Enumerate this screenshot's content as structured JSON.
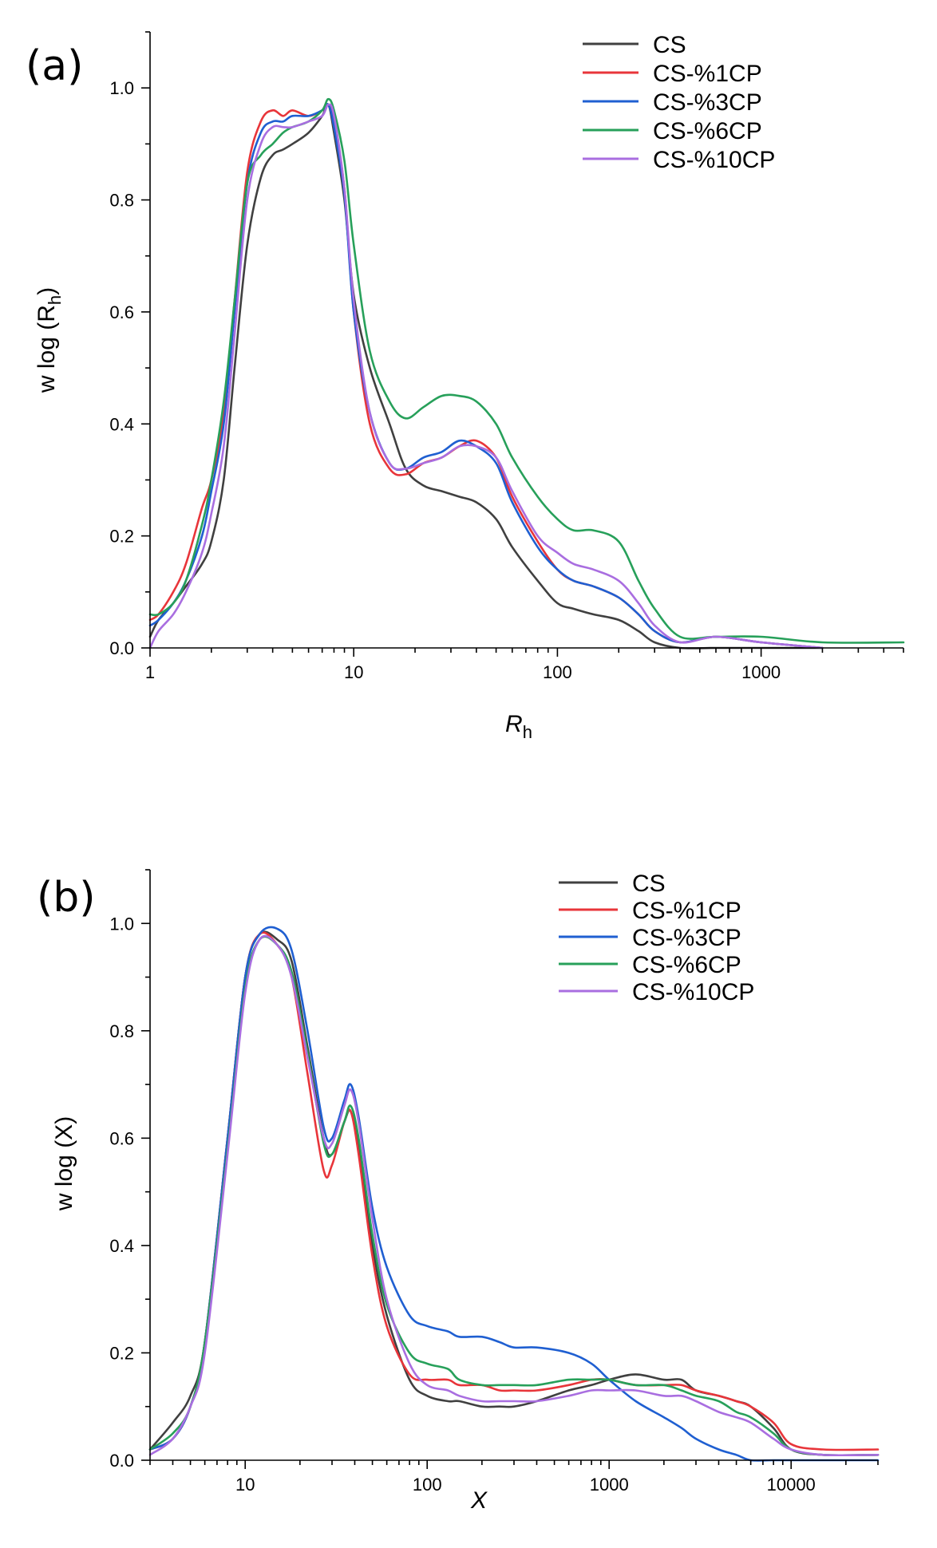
{
  "chart_data": [
    {
      "type": "line",
      "panel_label": "(a)",
      "xlabel": "R",
      "xlabel_sub": "h",
      "ylabel": "w log (R",
      "ylabel_sub": "h",
      "ylabel_close": ")",
      "x_scale": "log",
      "xlim": [
        1,
        5000
      ],
      "ylim": [
        0,
        1.1
      ],
      "x_ticks": [
        1,
        10,
        100,
        1000
      ],
      "x_tick_labels": [
        "1",
        "10",
        "100",
        "1000"
      ],
      "y_ticks": [
        0,
        0.2,
        0.4,
        0.6,
        0.8,
        1.0
      ],
      "y_tick_labels": [
        "0.0",
        "0.2",
        "0.4",
        "0.6",
        "0.8",
        "1.0"
      ],
      "grid": false,
      "legend_position": "top-right",
      "series": [
        {
          "name": "CS",
          "color": "#404040",
          "x": [
            1,
            1.1,
            1.3,
            1.5,
            1.8,
            2,
            2.3,
            2.6,
            3,
            3.5,
            4,
            4.5,
            5,
            6,
            7,
            7.5,
            8,
            9,
            10,
            12,
            15,
            18,
            22,
            27,
            33,
            40,
            50,
            60,
            80,
            100,
            120,
            150,
            200,
            250,
            300,
            400,
            600,
            1000,
            2000
          ],
          "y": [
            0.02,
            0.05,
            0.08,
            0.11,
            0.15,
            0.19,
            0.3,
            0.5,
            0.72,
            0.84,
            0.88,
            0.89,
            0.9,
            0.92,
            0.95,
            0.97,
            0.92,
            0.8,
            0.63,
            0.5,
            0.4,
            0.32,
            0.29,
            0.28,
            0.27,
            0.26,
            0.23,
            0.18,
            0.12,
            0.08,
            0.07,
            0.06,
            0.05,
            0.03,
            0.01,
            0.0,
            0.0,
            0.0,
            0.0
          ]
        },
        {
          "name": "CS-%1CP",
          "color": "#e8353a",
          "x": [
            1,
            1.1,
            1.3,
            1.5,
            1.8,
            2,
            2.3,
            2.6,
            3,
            3.5,
            4,
            4.5,
            5,
            6,
            7,
            7.5,
            8,
            9,
            10,
            12,
            15,
            18,
            22,
            27,
            33,
            40,
            50,
            60,
            80,
            100,
            120,
            150,
            200,
            250,
            300,
            400,
            600,
            1000,
            2000
          ],
          "y": [
            0.05,
            0.06,
            0.1,
            0.15,
            0.25,
            0.3,
            0.42,
            0.62,
            0.85,
            0.94,
            0.96,
            0.95,
            0.96,
            0.95,
            0.96,
            0.97,
            0.94,
            0.82,
            0.6,
            0.4,
            0.32,
            0.31,
            0.33,
            0.34,
            0.36,
            0.37,
            0.34,
            0.27,
            0.19,
            0.14,
            0.12,
            0.11,
            0.09,
            0.06,
            0.03,
            0.01,
            0.02,
            0.01,
            0.0
          ]
        },
        {
          "name": "CS-%3CP",
          "color": "#1f5fd1",
          "x": [
            1,
            1.1,
            1.3,
            1.5,
            1.8,
            2,
            2.3,
            2.6,
            3,
            3.5,
            4,
            4.5,
            5,
            6,
            7,
            7.5,
            8,
            9,
            10,
            12,
            15,
            18,
            22,
            27,
            33,
            40,
            50,
            60,
            80,
            100,
            120,
            150,
            200,
            250,
            300,
            400,
            600,
            1000,
            2000
          ],
          "y": [
            0.04,
            0.05,
            0.08,
            0.12,
            0.2,
            0.28,
            0.4,
            0.6,
            0.83,
            0.92,
            0.94,
            0.94,
            0.95,
            0.95,
            0.96,
            0.97,
            0.93,
            0.81,
            0.6,
            0.42,
            0.33,
            0.32,
            0.34,
            0.35,
            0.37,
            0.36,
            0.33,
            0.26,
            0.18,
            0.14,
            0.12,
            0.11,
            0.09,
            0.06,
            0.03,
            0.01,
            0.02,
            0.01,
            0.0
          ]
        },
        {
          "name": "CS-%6CP",
          "color": "#27a05a",
          "x": [
            1,
            1.1,
            1.3,
            1.5,
            1.8,
            2,
            2.3,
            2.6,
            3,
            3.5,
            4,
            4.5,
            5,
            6,
            7,
            7.5,
            8,
            9,
            10,
            12,
            15,
            18,
            22,
            27,
            33,
            40,
            50,
            60,
            80,
            100,
            120,
            150,
            200,
            250,
            300,
            400,
            600,
            1000,
            2000,
            5000
          ],
          "y": [
            0.06,
            0.06,
            0.08,
            0.12,
            0.22,
            0.3,
            0.44,
            0.62,
            0.83,
            0.88,
            0.9,
            0.92,
            0.93,
            0.94,
            0.96,
            0.98,
            0.96,
            0.87,
            0.72,
            0.53,
            0.44,
            0.41,
            0.43,
            0.45,
            0.45,
            0.44,
            0.4,
            0.34,
            0.27,
            0.23,
            0.21,
            0.21,
            0.19,
            0.12,
            0.07,
            0.02,
            0.02,
            0.02,
            0.01,
            0.01
          ]
        },
        {
          "name": "CS-%10CP",
          "color": "#a96ee0",
          "x": [
            1,
            1.1,
            1.3,
            1.5,
            1.8,
            2,
            2.3,
            2.6,
            3,
            3.5,
            4,
            4.5,
            5,
            6,
            7,
            7.5,
            8,
            9,
            10,
            12,
            15,
            18,
            22,
            27,
            33,
            40,
            50,
            60,
            80,
            100,
            120,
            150,
            200,
            250,
            300,
            400,
            600,
            1000,
            2000
          ],
          "y": [
            0.0,
            0.03,
            0.06,
            0.1,
            0.17,
            0.24,
            0.36,
            0.56,
            0.8,
            0.9,
            0.93,
            0.93,
            0.93,
            0.94,
            0.95,
            0.97,
            0.95,
            0.82,
            0.62,
            0.42,
            0.33,
            0.32,
            0.33,
            0.34,
            0.36,
            0.36,
            0.34,
            0.28,
            0.2,
            0.17,
            0.15,
            0.14,
            0.12,
            0.08,
            0.04,
            0.01,
            0.02,
            0.01,
            0.0
          ]
        }
      ]
    },
    {
      "type": "line",
      "panel_label": "(b)",
      "xlabel": "X",
      "ylabel": "w log (X)",
      "x_scale": "log",
      "xlim": [
        3,
        30000
      ],
      "ylim": [
        0,
        1.1
      ],
      "x_ticks": [
        10,
        100,
        1000,
        10000
      ],
      "x_tick_labels": [
        "10",
        "100",
        "1000",
        "10000"
      ],
      "y_ticks": [
        0,
        0.2,
        0.4,
        0.6,
        0.8,
        1.0
      ],
      "y_tick_labels": [
        "0.0",
        "0.2",
        "0.4",
        "0.6",
        "0.8",
        "1.0"
      ],
      "grid": false,
      "legend_position": "top-right",
      "series": [
        {
          "name": "CS",
          "color": "#404040",
          "x": [
            3,
            4,
            5,
            6,
            8,
            10,
            12,
            15,
            18,
            22,
            27,
            30,
            35,
            38,
            42,
            50,
            60,
            80,
            100,
            130,
            150,
            200,
            250,
            300,
            400,
            600,
            800,
            1000,
            1400,
            2000,
            2500,
            3000,
            4000,
            5000,
            6000,
            8000,
            10000,
            15000,
            30000
          ],
          "y": [
            0.02,
            0.07,
            0.12,
            0.22,
            0.6,
            0.9,
            0.98,
            0.97,
            0.93,
            0.77,
            0.6,
            0.57,
            0.63,
            0.65,
            0.58,
            0.4,
            0.27,
            0.15,
            0.12,
            0.11,
            0.11,
            0.1,
            0.1,
            0.1,
            0.11,
            0.13,
            0.14,
            0.15,
            0.16,
            0.15,
            0.15,
            0.13,
            0.12,
            0.11,
            0.1,
            0.06,
            0.02,
            0.01,
            0.01
          ]
        },
        {
          "name": "CS-%1CP",
          "color": "#e8353a",
          "x": [
            3,
            4,
            5,
            6,
            8,
            10,
            12,
            15,
            18,
            22,
            27,
            30,
            35,
            38,
            42,
            50,
            60,
            80,
            100,
            130,
            150,
            200,
            250,
            300,
            400,
            600,
            800,
            1000,
            1400,
            2000,
            2500,
            3000,
            4000,
            5000,
            6000,
            8000,
            10000,
            15000,
            30000
          ],
          "y": [
            0.02,
            0.04,
            0.1,
            0.22,
            0.6,
            0.9,
            0.98,
            0.96,
            0.9,
            0.72,
            0.54,
            0.55,
            0.63,
            0.65,
            0.57,
            0.38,
            0.25,
            0.16,
            0.15,
            0.15,
            0.14,
            0.14,
            0.13,
            0.13,
            0.13,
            0.14,
            0.15,
            0.15,
            0.14,
            0.14,
            0.14,
            0.13,
            0.12,
            0.11,
            0.1,
            0.07,
            0.03,
            0.02,
            0.02
          ]
        },
        {
          "name": "CS-%3CP",
          "color": "#1f5fd1",
          "x": [
            3,
            4,
            5,
            6,
            8,
            10,
            12,
            15,
            18,
            22,
            27,
            30,
            35,
            38,
            42,
            50,
            60,
            80,
            100,
            130,
            150,
            200,
            250,
            300,
            400,
            600,
            800,
            1000,
            1400,
            2000,
            2500,
            3000,
            4000,
            5000,
            6000,
            8000,
            10000,
            15000,
            30000
          ],
          "y": [
            0.02,
            0.04,
            0.1,
            0.22,
            0.6,
            0.9,
            0.98,
            0.99,
            0.95,
            0.8,
            0.62,
            0.6,
            0.67,
            0.7,
            0.64,
            0.47,
            0.36,
            0.27,
            0.25,
            0.24,
            0.23,
            0.23,
            0.22,
            0.21,
            0.21,
            0.2,
            0.18,
            0.15,
            0.11,
            0.08,
            0.06,
            0.04,
            0.02,
            0.01,
            0.0,
            0.0,
            0.0,
            0.0,
            0.0
          ]
        },
        {
          "name": "CS-%6CP",
          "color": "#27a05a",
          "x": [
            3,
            4,
            5,
            6,
            8,
            10,
            12,
            15,
            18,
            22,
            27,
            30,
            35,
            38,
            42,
            50,
            60,
            80,
            100,
            130,
            150,
            200,
            250,
            300,
            400,
            600,
            800,
            1000,
            1400,
            2000,
            2500,
            3000,
            4000,
            5000,
            6000,
            8000,
            10000,
            15000,
            30000
          ],
          "y": [
            0.02,
            0.05,
            0.1,
            0.22,
            0.58,
            0.88,
            0.97,
            0.96,
            0.91,
            0.76,
            0.59,
            0.57,
            0.63,
            0.66,
            0.6,
            0.42,
            0.29,
            0.2,
            0.18,
            0.17,
            0.15,
            0.14,
            0.14,
            0.14,
            0.14,
            0.15,
            0.15,
            0.15,
            0.14,
            0.14,
            0.13,
            0.12,
            0.11,
            0.09,
            0.08,
            0.05,
            0.02,
            0.01,
            0.01
          ]
        },
        {
          "name": "CS-%10CP",
          "color": "#a96ee0",
          "x": [
            3,
            4,
            5,
            6,
            8,
            10,
            12,
            15,
            18,
            22,
            27,
            30,
            35,
            38,
            42,
            50,
            60,
            80,
            100,
            130,
            150,
            200,
            250,
            300,
            400,
            600,
            800,
            1000,
            1400,
            2000,
            2500,
            3000,
            4000,
            5000,
            6000,
            8000,
            10000,
            15000,
            30000
          ],
          "y": [
            0.01,
            0.04,
            0.1,
            0.2,
            0.57,
            0.87,
            0.97,
            0.96,
            0.9,
            0.75,
            0.6,
            0.59,
            0.66,
            0.69,
            0.63,
            0.45,
            0.3,
            0.18,
            0.14,
            0.13,
            0.12,
            0.11,
            0.11,
            0.11,
            0.11,
            0.12,
            0.13,
            0.13,
            0.13,
            0.12,
            0.12,
            0.11,
            0.09,
            0.08,
            0.07,
            0.04,
            0.02,
            0.01,
            0.01
          ]
        }
      ]
    }
  ]
}
